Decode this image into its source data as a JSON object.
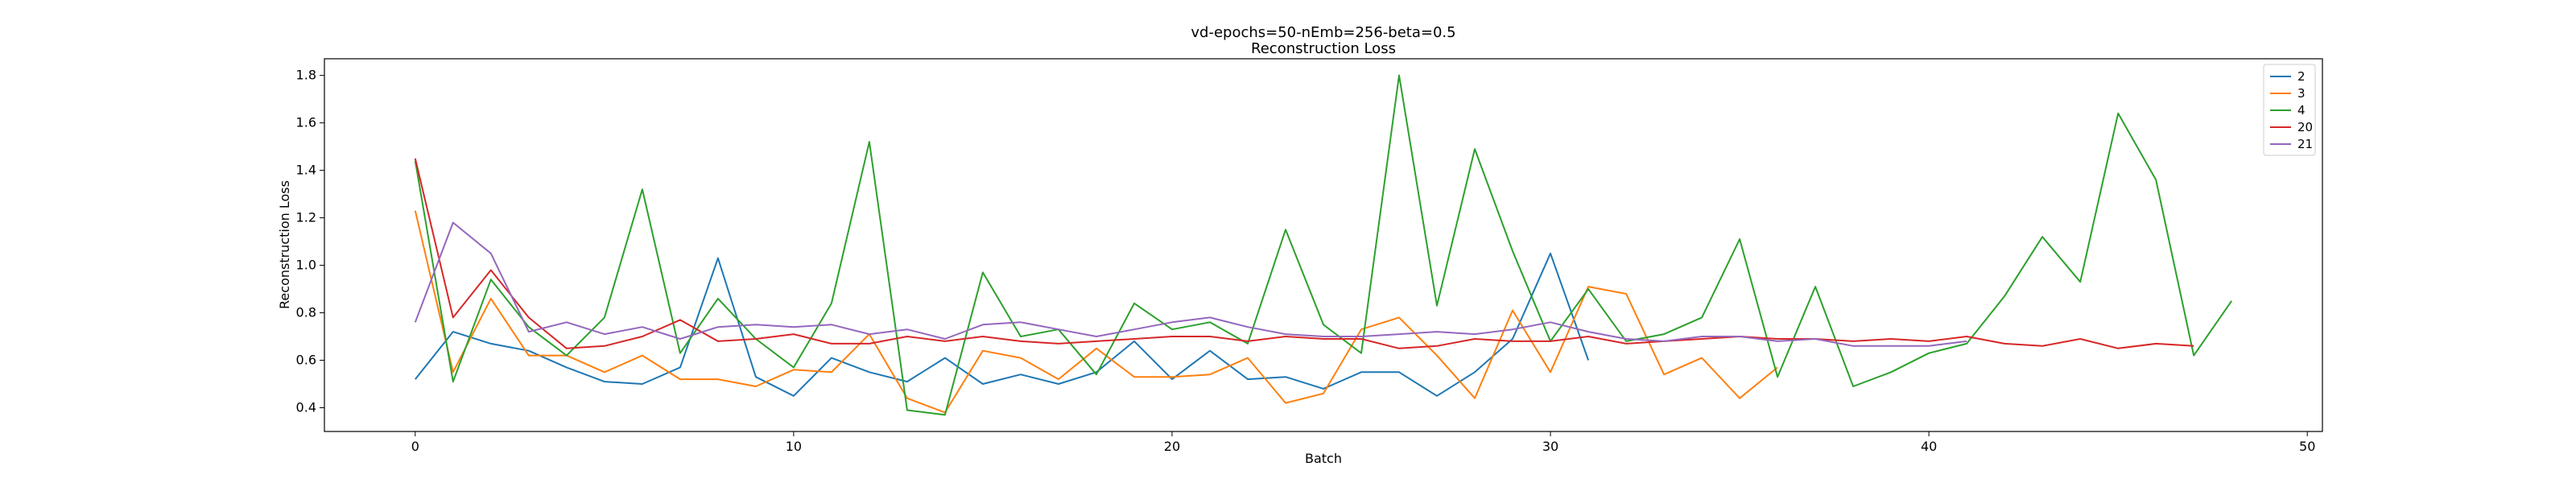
{
  "chart_data": {
    "type": "line",
    "title": "vd-epochs=50-nEmb=256-beta=0.5",
    "subtitle": "Reconstruction Loss",
    "xlabel": "Batch",
    "ylabel": "Reconstruction Loss",
    "xlim": [
      -2.4,
      50.4
    ],
    "ylim": [
      0.3,
      1.87
    ],
    "xticks": [
      0,
      10,
      20,
      30,
      40,
      50
    ],
    "yticks": [
      0.4,
      0.6,
      0.8,
      1.0,
      1.2,
      1.4,
      1.6,
      1.8
    ],
    "xtick_labels": [
      "0",
      "10",
      "20",
      "30",
      "40",
      "50"
    ],
    "ytick_labels": [
      "0.4",
      "0.6",
      "0.8",
      "1.0",
      "1.2",
      "1.4",
      "1.6",
      "1.8"
    ],
    "grid": false,
    "legend_position": "top-right",
    "series": [
      {
        "name": "2",
        "color": "#1f77b4",
        "values": [
          0.52,
          0.72,
          0.67,
          0.64,
          0.57,
          0.51,
          0.5,
          0.57,
          1.03,
          0.53,
          0.45,
          0.61,
          0.55,
          0.51,
          0.61,
          0.5,
          0.54,
          0.5,
          0.55,
          0.68,
          0.52,
          0.64,
          0.52,
          0.53,
          0.48,
          0.55,
          0.55,
          0.45,
          0.55,
          0.69,
          1.05,
          0.6
        ]
      },
      {
        "name": "3",
        "color": "#ff7f0e",
        "values": [
          1.23,
          0.55,
          0.86,
          0.62,
          0.62,
          0.55,
          0.62,
          0.52,
          0.52,
          0.49,
          0.56,
          0.55,
          0.71,
          0.44,
          0.38,
          0.64,
          0.61,
          0.52,
          0.65,
          0.53,
          0.53,
          0.54,
          0.61,
          0.42,
          0.46,
          0.73,
          0.78,
          0.62,
          0.44,
          0.81,
          0.55,
          0.91,
          0.88,
          0.54,
          0.61,
          0.44,
          0.57
        ]
      },
      {
        "name": "4",
        "color": "#2ca02c",
        "values": [
          1.44,
          0.51,
          0.94,
          0.74,
          0.62,
          0.78,
          1.32,
          0.63,
          0.86,
          0.69,
          0.57,
          0.84,
          1.52,
          0.39,
          0.37,
          0.97,
          0.7,
          0.73,
          0.54,
          0.84,
          0.73,
          0.76,
          0.67,
          1.15,
          0.75,
          0.63,
          1.8,
          0.83,
          1.49,
          1.06,
          0.68,
          0.9,
          0.68,
          0.71,
          0.78,
          1.11,
          0.53,
          0.91,
          0.49,
          0.55,
          0.63,
          0.67,
          0.87,
          1.12,
          0.93,
          1.64,
          1.36,
          0.62,
          0.85
        ]
      },
      {
        "name": "20",
        "color": "#d62728",
        "values": [
          1.45,
          0.78,
          0.98,
          0.78,
          0.65,
          0.66,
          0.7,
          0.77,
          0.68,
          0.69,
          0.71,
          0.67,
          0.67,
          0.7,
          0.68,
          0.7,
          0.68,
          0.67,
          0.68,
          0.69,
          0.7,
          0.7,
          0.68,
          0.7,
          0.69,
          0.69,
          0.65,
          0.66,
          0.69,
          0.68,
          0.68,
          0.7,
          0.67,
          0.68,
          0.69,
          0.7,
          0.69,
          0.69,
          0.68,
          0.69,
          0.68,
          0.7,
          0.67,
          0.66,
          0.69,
          0.65,
          0.67,
          0.66
        ]
      },
      {
        "name": "21",
        "color": "#9467bd",
        "values": [
          0.76,
          1.18,
          1.05,
          0.72,
          0.76,
          0.71,
          0.74,
          0.69,
          0.74,
          0.75,
          0.74,
          0.75,
          0.71,
          0.73,
          0.69,
          0.75,
          0.76,
          0.73,
          0.7,
          0.73,
          0.76,
          0.78,
          0.74,
          0.71,
          0.7,
          0.7,
          0.71,
          0.72,
          0.71,
          0.73,
          0.76,
          0.72,
          0.69,
          0.68,
          0.7,
          0.7,
          0.68,
          0.69,
          0.66,
          0.66,
          0.66,
          0.68
        ]
      }
    ]
  }
}
